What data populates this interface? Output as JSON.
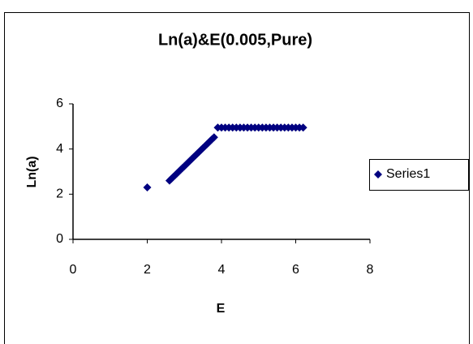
{
  "chart_data": {
    "type": "scatter",
    "title": "Ln(a)&E(0.005,Pure)",
    "x_label": "E",
    "y_label": "Ln(a)",
    "series": [
      {
        "name": "Series1",
        "color": "#000080",
        "x": [
          2.0,
          2.6,
          2.65,
          2.7,
          2.75,
          2.8,
          2.85,
          2.9,
          2.95,
          3.0,
          3.05,
          3.1,
          3.15,
          3.2,
          3.25,
          3.3,
          3.35,
          3.4,
          3.45,
          3.5,
          3.55,
          3.6,
          3.65,
          3.7,
          3.75,
          3.8,
          3.9,
          4.0,
          4.1,
          4.2,
          4.3,
          4.4,
          4.5,
          4.6,
          4.7,
          4.8,
          4.9,
          5.0,
          5.1,
          5.2,
          5.3,
          5.4,
          5.5,
          5.6,
          5.7,
          5.8,
          5.9,
          6.0,
          6.1,
          6.2
        ],
        "values": [
          2.3,
          2.6,
          2.68,
          2.76,
          2.84,
          2.92,
          3.0,
          3.08,
          3.16,
          3.24,
          3.32,
          3.4,
          3.48,
          3.56,
          3.64,
          3.72,
          3.8,
          3.88,
          3.96,
          4.04,
          4.12,
          4.2,
          4.28,
          4.36,
          4.44,
          4.52,
          4.95,
          4.95,
          4.95,
          4.95,
          4.95,
          4.95,
          4.95,
          4.95,
          4.95,
          4.95,
          4.95,
          4.95,
          4.95,
          4.95,
          4.95,
          4.95,
          4.95,
          4.95,
          4.95,
          4.95,
          4.95,
          4.95,
          4.95,
          4.95
        ]
      }
    ],
    "xlim": [
      0,
      8
    ],
    "xticks": [
      0,
      2,
      4,
      6,
      8
    ],
    "ylim": [
      0,
      6
    ],
    "yticks": [
      0,
      2,
      4,
      6
    ],
    "legend": "right"
  }
}
